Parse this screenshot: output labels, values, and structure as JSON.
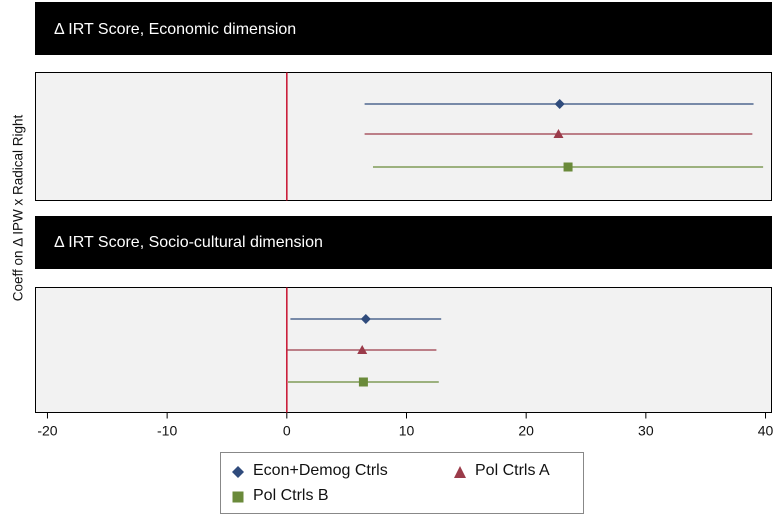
{
  "chart_data": {
    "type": "coefficient-plot",
    "ylabel": "Coeff on Δ IPW x Radical Right",
    "xlim": [
      -21,
      40.5
    ],
    "xticks": [
      -20,
      -10,
      0,
      10,
      20,
      30,
      40
    ],
    "reference_line_x": 0,
    "grid": false,
    "legend_position": "bottom",
    "series": [
      {
        "name": "Econ+Demog Ctrls",
        "color": "#2f4b7c",
        "marker": "diamond"
      },
      {
        "name": "Pol Ctrls A",
        "color": "#9b3b4a",
        "marker": "triangle"
      },
      {
        "name": "Pol Ctrls B",
        "color": "#6a8a3a",
        "marker": "square"
      }
    ],
    "panels": [
      {
        "title": "Δ IRT Score, Economic dimension",
        "estimates": [
          {
            "series": "Econ+Demog Ctrls",
            "coef": 22.8,
            "ci_low": 6.5,
            "ci_high": 39.0
          },
          {
            "series": "Pol Ctrls A",
            "coef": 22.7,
            "ci_low": 6.5,
            "ci_high": 38.9
          },
          {
            "series": "Pol Ctrls B",
            "coef": 23.5,
            "ci_low": 7.2,
            "ci_high": 39.8
          }
        ]
      },
      {
        "title": "Δ IRT Score, Socio-cultural dimension",
        "estimates": [
          {
            "series": "Econ+Demog Ctrls",
            "coef": 6.6,
            "ci_low": 0.3,
            "ci_high": 12.9
          },
          {
            "series": "Pol Ctrls A",
            "coef": 6.3,
            "ci_low": 0.0,
            "ci_high": 12.5
          },
          {
            "series": "Pol Ctrls B",
            "coef": 6.4,
            "ci_low": 0.1,
            "ci_high": 12.7
          }
        ]
      }
    ]
  }
}
